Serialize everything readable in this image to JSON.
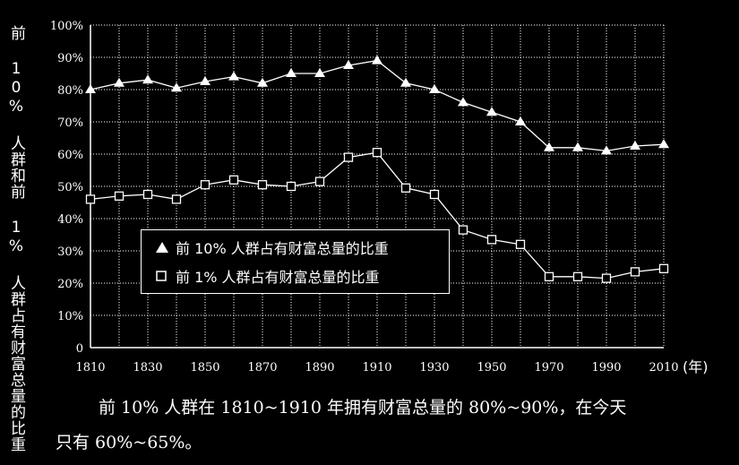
{
  "chart_data": {
    "type": "line",
    "ylabel": "前 10% 人群和前 1% 人群占有财富总量的比重",
    "xunit": "(年)",
    "xticks": [
      "1810",
      "1830",
      "1850",
      "1870",
      "1890",
      "1910",
      "1930",
      "1950",
      "1970",
      "1990",
      "2010"
    ],
    "yticks": [
      "0",
      "10%",
      "20%",
      "30%",
      "40%",
      "50%",
      "60%",
      "70%",
      "80%",
      "90%",
      "100%"
    ],
    "xlim": [
      1810,
      2010
    ],
    "ylim": [
      0,
      100
    ],
    "grid": true,
    "legend_position": "center-left",
    "series": [
      {
        "name": "前 10% 人群占有财富总量的比重",
        "marker": "filled-triangle",
        "x": [
          1810,
          1820,
          1830,
          1840,
          1850,
          1860,
          1870,
          1880,
          1890,
          1900,
          1910,
          1920,
          1930,
          1940,
          1950,
          1960,
          1970,
          1980,
          1990,
          2000,
          2010
        ],
        "values": [
          80,
          82,
          83,
          80.5,
          82.5,
          84,
          82,
          85,
          85,
          87.5,
          89,
          82,
          80,
          76,
          73,
          70,
          62,
          62,
          61,
          62.5,
          63
        ]
      },
      {
        "name": "前 1% 人群占有财富总量的比重",
        "marker": "open-square",
        "x": [
          1810,
          1820,
          1830,
          1840,
          1850,
          1860,
          1870,
          1880,
          1890,
          1900,
          1910,
          1920,
          1930,
          1940,
          1950,
          1960,
          1970,
          1980,
          1990,
          2000,
          2010
        ],
        "values": [
          46,
          47,
          47.5,
          46,
          50.5,
          52,
          50.5,
          50,
          51.5,
          59,
          60.5,
          49.5,
          47.5,
          36.5,
          33.5,
          32,
          22,
          22,
          21.5,
          23.5,
          24.5
        ]
      }
    ]
  },
  "caption": {
    "line1": "前 10% 人群在 1810~1910 年拥有财富总量的 80%~90%，在今天",
    "line2": "只有 60%~65%。"
  },
  "colors": {
    "background": "#000000",
    "foreground": "#ffffff"
  }
}
